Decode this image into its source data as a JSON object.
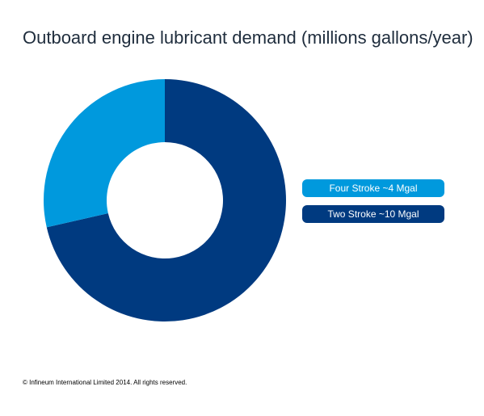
{
  "colors": {
    "four_stroke": "#0099dd",
    "two_stroke": "#003a80"
  },
  "chart_data": {
    "type": "pie",
    "subtype": "donut",
    "title": "Outboard engine lubricant demand (millions gallons/year)",
    "legend_position": "right",
    "series": [
      {
        "name": "Four Stroke ~4 Mgal",
        "value": 4,
        "color": "#0099dd"
      },
      {
        "name": "Two Stroke ~10 Mgal",
        "value": 10,
        "color": "#003a80"
      }
    ]
  },
  "footer": {
    "copyright": "© Infineum International Limited 2014. All rights reserved."
  }
}
